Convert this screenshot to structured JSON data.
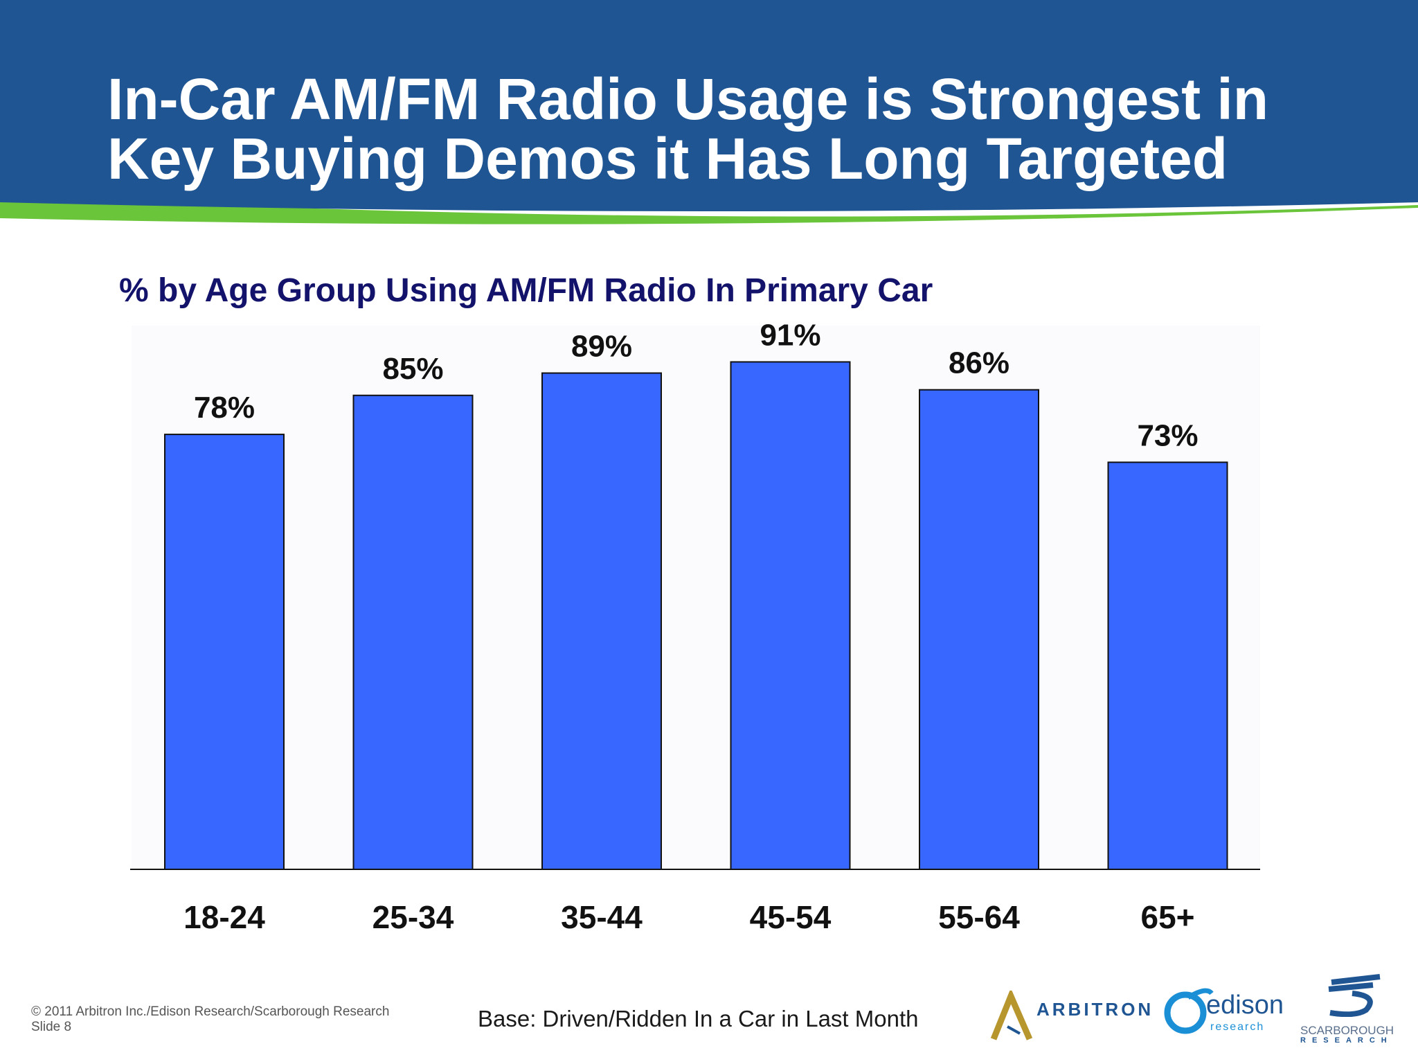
{
  "slide": {
    "title_line1": "In-Car AM/FM Radio Usage is Strongest in",
    "title_line2": "Key Buying Demos it Has Long Targeted",
    "subtitle": "% by Age Group Using AM/FM Radio In Primary Car",
    "copyright": "© 2011 Arbitron Inc./Edison Research/Scarborough Research",
    "slide_number": "Slide 8",
    "base_note": "Base: Driven/Ridden In a Car in Last Month"
  },
  "logos": {
    "arbitron": "ARBITRON",
    "edison": "edison",
    "edison_sub": "research",
    "scarborough": "SCARBOROUGH",
    "scarborough_sub": "RESEARCH"
  },
  "colors": {
    "header": "#1f5592",
    "accent_green": "#6ac53a",
    "bar": "#3767ff",
    "subtitle": "#13136b"
  },
  "chart_data": {
    "type": "bar",
    "categories": [
      "18-24",
      "25-34",
      "35-44",
      "45-54",
      "55-64",
      "65+"
    ],
    "values": [
      78,
      85,
      89,
      91,
      86,
      73
    ],
    "labels": [
      "78%",
      "85%",
      "89%",
      "91%",
      "86%",
      "73%"
    ],
    "unit": "%",
    "ylim": [
      0,
      100
    ],
    "grid": false,
    "legend": "none"
  }
}
